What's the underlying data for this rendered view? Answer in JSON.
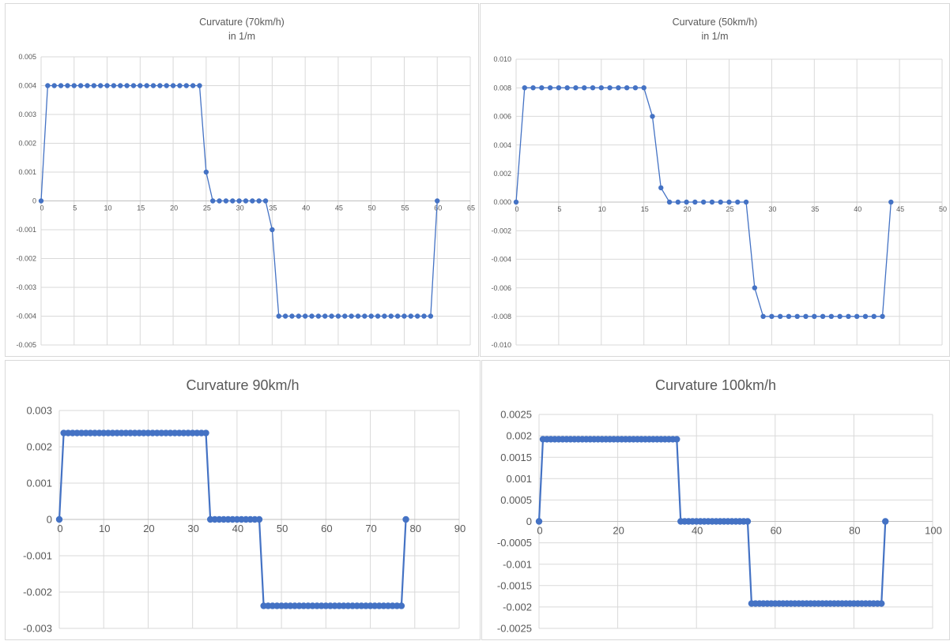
{
  "chart_data": [
    {
      "type": "line",
      "title": "Curvature (70km/h)",
      "subtitle": "in 1/m",
      "xlabel": "",
      "ylabel": "",
      "xlim": [
        0,
        65
      ],
      "ylim": [
        -0.005,
        0.005
      ],
      "x_ticks": [
        0,
        5,
        10,
        15,
        20,
        25,
        30,
        35,
        40,
        45,
        50,
        55,
        60,
        65
      ],
      "y_ticks": [
        -0.005,
        -0.004,
        -0.003,
        -0.002,
        -0.001,
        0,
        0.001,
        0.002,
        0.003,
        0.004,
        0.005
      ],
      "x_tick_labels": [
        "0",
        "5",
        "10",
        "15",
        "20",
        "25",
        "30",
        "35",
        "40",
        "45",
        "50",
        "55",
        "60",
        "65"
      ],
      "y_tick_labels": [
        "-0.005",
        "-0.004",
        "-0.003",
        "-0.002",
        "-0.001",
        "0",
        "0.001",
        "0.002",
        "0.003",
        "0.004",
        "0.005"
      ],
      "grid": true,
      "series": [
        {
          "color": "#4472c4",
          "x": [
            0,
            1,
            2,
            3,
            4,
            5,
            6,
            7,
            8,
            9,
            10,
            11,
            12,
            13,
            14,
            15,
            16,
            17,
            18,
            19,
            20,
            21,
            22,
            23,
            24,
            25,
            26,
            27,
            28,
            29,
            30,
            31,
            32,
            33,
            34,
            35,
            36,
            37,
            38,
            39,
            40,
            41,
            42,
            43,
            44,
            45,
            46,
            47,
            48,
            49,
            50,
            51,
            52,
            53,
            54,
            55,
            56,
            57,
            58,
            59,
            60
          ],
          "y": [
            0,
            0.004,
            0.004,
            0.004,
            0.004,
            0.004,
            0.004,
            0.004,
            0.004,
            0.004,
            0.004,
            0.004,
            0.004,
            0.004,
            0.004,
            0.004,
            0.004,
            0.004,
            0.004,
            0.004,
            0.004,
            0.004,
            0.004,
            0.004,
            0.004,
            0.001,
            0,
            0,
            0,
            0,
            0,
            0,
            0,
            0,
            0,
            -0.001,
            -0.004,
            -0.004,
            -0.004,
            -0.004,
            -0.004,
            -0.004,
            -0.004,
            -0.004,
            -0.004,
            -0.004,
            -0.004,
            -0.004,
            -0.004,
            -0.004,
            -0.004,
            -0.004,
            -0.004,
            -0.004,
            -0.004,
            -0.004,
            -0.004,
            -0.004,
            -0.004,
            -0.004,
            0
          ]
        }
      ]
    },
    {
      "type": "line",
      "title": "Curvature (50km/h)",
      "subtitle": "in 1/m",
      "xlabel": "",
      "ylabel": "",
      "xlim": [
        0,
        50
      ],
      "ylim": [
        -0.01,
        0.01
      ],
      "x_ticks": [
        0,
        5,
        10,
        15,
        20,
        25,
        30,
        35,
        40,
        45,
        50
      ],
      "y_ticks": [
        -0.01,
        -0.008,
        -0.006,
        -0.004,
        -0.002,
        0,
        0.002,
        0.004,
        0.006,
        0.008,
        0.01
      ],
      "x_tick_labels": [
        "0",
        "5",
        "10",
        "15",
        "20",
        "25",
        "30",
        "35",
        "40",
        "45",
        "50"
      ],
      "y_tick_labels": [
        "-0.010",
        "-0.008",
        "-0.006",
        "-0.004",
        "-0.002",
        "0.000",
        "0.002",
        "0.004",
        "0.006",
        "0.008",
        "0.010"
      ],
      "grid": true,
      "series": [
        {
          "color": "#4472c4",
          "x": [
            0,
            1,
            2,
            3,
            4,
            5,
            6,
            7,
            8,
            9,
            10,
            11,
            12,
            13,
            14,
            15,
            16,
            17,
            18,
            19,
            20,
            21,
            22,
            23,
            24,
            25,
            26,
            27,
            28,
            29,
            30,
            31,
            32,
            33,
            34,
            35,
            36,
            37,
            38,
            39,
            40,
            41,
            42,
            43,
            44
          ],
          "y": [
            0,
            0.008,
            0.008,
            0.008,
            0.008,
            0.008,
            0.008,
            0.008,
            0.008,
            0.008,
            0.008,
            0.008,
            0.008,
            0.008,
            0.008,
            0.008,
            0.006,
            0.001,
            0,
            0,
            0,
            0,
            0,
            0,
            0,
            0,
            0,
            0,
            -0.006,
            -0.008,
            -0.008,
            -0.008,
            -0.008,
            -0.008,
            -0.008,
            -0.008,
            -0.008,
            -0.008,
            -0.008,
            -0.008,
            -0.008,
            -0.008,
            -0.008,
            -0.008,
            0
          ]
        }
      ]
    },
    {
      "type": "line",
      "title": "Curvature 90km/h",
      "xlabel": "",
      "ylabel": "",
      "xlim": [
        0,
        90
      ],
      "ylim": [
        -0.003,
        0.003
      ],
      "x_ticks": [
        0,
        10,
        20,
        30,
        40,
        50,
        60,
        70,
        80,
        90
      ],
      "y_ticks": [
        -0.003,
        -0.002,
        -0.001,
        0,
        0.001,
        0.002,
        0.003
      ],
      "x_tick_labels": [
        "0",
        "10",
        "20",
        "30",
        "40",
        "50",
        "60",
        "70",
        "80",
        "90"
      ],
      "y_tick_labels": [
        "-0.003",
        "-0.002",
        "-0.001",
        "0",
        "0.001",
        "0.002",
        "0.003"
      ],
      "grid": true,
      "series": [
        {
          "color": "#4472c4",
          "x": [
            0,
            1,
            2,
            3,
            4,
            5,
            6,
            7,
            8,
            9,
            10,
            11,
            12,
            13,
            14,
            15,
            16,
            17,
            18,
            19,
            20,
            21,
            22,
            23,
            24,
            25,
            26,
            27,
            28,
            29,
            30,
            31,
            32,
            33,
            34,
            35,
            36,
            37,
            38,
            39,
            40,
            41,
            42,
            43,
            44,
            45,
            46,
            47,
            48,
            49,
            50,
            51,
            52,
            53,
            54,
            55,
            56,
            57,
            58,
            59,
            60,
            61,
            62,
            63,
            64,
            65,
            66,
            67,
            68,
            69,
            70,
            71,
            72,
            73,
            74,
            75,
            76,
            77,
            78
          ],
          "y": [
            0,
            0.00238,
            0.00238,
            0.00238,
            0.00238,
            0.00238,
            0.00238,
            0.00238,
            0.00238,
            0.00238,
            0.00238,
            0.00238,
            0.00238,
            0.00238,
            0.00238,
            0.00238,
            0.00238,
            0.00238,
            0.00238,
            0.00238,
            0.00238,
            0.00238,
            0.00238,
            0.00238,
            0.00238,
            0.00238,
            0.00238,
            0.00238,
            0.00238,
            0.00238,
            0.00238,
            0.00238,
            0.00238,
            0.00238,
            0,
            0,
            0,
            0,
            0,
            0,
            0,
            0,
            0,
            0,
            0,
            0,
            -0.00238,
            -0.00238,
            -0.00238,
            -0.00238,
            -0.00238,
            -0.00238,
            -0.00238,
            -0.00238,
            -0.00238,
            -0.00238,
            -0.00238,
            -0.00238,
            -0.00238,
            -0.00238,
            -0.00238,
            -0.00238,
            -0.00238,
            -0.00238,
            -0.00238,
            -0.00238,
            -0.00238,
            -0.00238,
            -0.00238,
            -0.00238,
            -0.00238,
            -0.00238,
            -0.00238,
            -0.00238,
            -0.00238,
            -0.00238,
            -0.00238,
            -0.00238,
            0
          ]
        }
      ]
    },
    {
      "type": "line",
      "title": "Curvature 100km/h",
      "xlabel": "",
      "ylabel": "",
      "xlim": [
        0,
        100
      ],
      "ylim": [
        -0.0025,
        0.0025
      ],
      "x_ticks": [
        0,
        20,
        40,
        60,
        80,
        100
      ],
      "y_ticks": [
        -0.0025,
        -0.002,
        -0.0015,
        -0.001,
        -0.0005,
        0,
        0.0005,
        0.001,
        0.0015,
        0.002,
        0.0025
      ],
      "x_tick_labels": [
        "0",
        "20",
        "40",
        "60",
        "80",
        "100"
      ],
      "y_tick_labels": [
        "-0.0025",
        "-0.002",
        "-0.0015",
        "-0.001",
        "-0.0005",
        "0",
        "0.0005",
        "0.001",
        "0.0015",
        "0.002",
        "0.0025"
      ],
      "grid": true,
      "series": [
        {
          "color": "#4472c4",
          "x": [
            0,
            1,
            2,
            3,
            4,
            5,
            6,
            7,
            8,
            9,
            10,
            11,
            12,
            13,
            14,
            15,
            16,
            17,
            18,
            19,
            20,
            21,
            22,
            23,
            24,
            25,
            26,
            27,
            28,
            29,
            30,
            31,
            32,
            33,
            34,
            35,
            36,
            37,
            38,
            39,
            40,
            41,
            42,
            43,
            44,
            45,
            46,
            47,
            48,
            49,
            50,
            51,
            52,
            53,
            54,
            55,
            56,
            57,
            58,
            59,
            60,
            61,
            62,
            63,
            64,
            65,
            66,
            67,
            68,
            69,
            70,
            71,
            72,
            73,
            74,
            75,
            76,
            77,
            78,
            79,
            80,
            81,
            82,
            83,
            84,
            85,
            86,
            87,
            88
          ],
          "y": [
            0,
            0.00192,
            0.00192,
            0.00192,
            0.00192,
            0.00192,
            0.00192,
            0.00192,
            0.00192,
            0.00192,
            0.00192,
            0.00192,
            0.00192,
            0.00192,
            0.00192,
            0.00192,
            0.00192,
            0.00192,
            0.00192,
            0.00192,
            0.00192,
            0.00192,
            0.00192,
            0.00192,
            0.00192,
            0.00192,
            0.00192,
            0.00192,
            0.00192,
            0.00192,
            0.00192,
            0.00192,
            0.00192,
            0.00192,
            0.00192,
            0.00192,
            0,
            0,
            0,
            0,
            0,
            0,
            0,
            0,
            0,
            0,
            0,
            0,
            0,
            0,
            0,
            0,
            0,
            0,
            -0.00192,
            -0.00192,
            -0.00192,
            -0.00192,
            -0.00192,
            -0.00192,
            -0.00192,
            -0.00192,
            -0.00192,
            -0.00192,
            -0.00192,
            -0.00192,
            -0.00192,
            -0.00192,
            -0.00192,
            -0.00192,
            -0.00192,
            -0.00192,
            -0.00192,
            -0.00192,
            -0.00192,
            -0.00192,
            -0.00192,
            -0.00192,
            -0.00192,
            -0.00192,
            -0.00192,
            -0.00192,
            -0.00192,
            -0.00192,
            -0.00192,
            -0.00192,
            -0.00192,
            -0.00192,
            0
          ]
        }
      ]
    }
  ]
}
